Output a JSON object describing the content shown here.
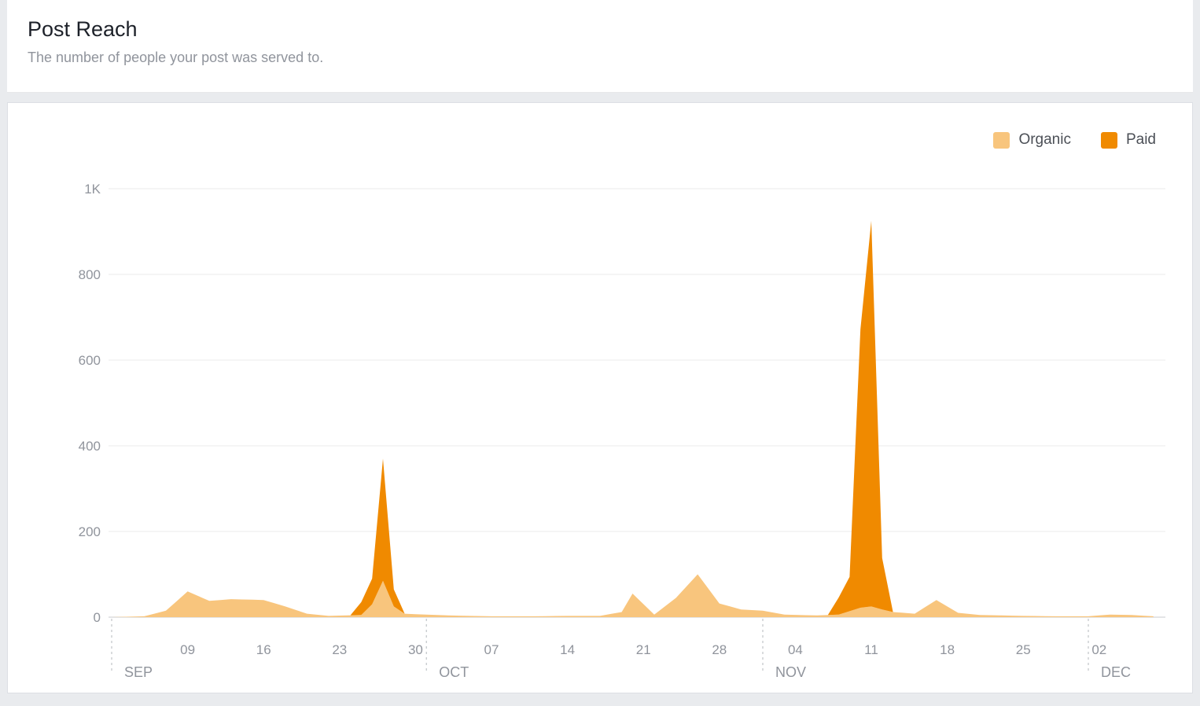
{
  "header": {
    "title": "Post Reach",
    "subtitle": "The number of people your post was served to."
  },
  "legend": [
    {
      "label": "Organic",
      "color": "#F8C57D"
    },
    {
      "label": "Paid",
      "color": "#F08A00"
    }
  ],
  "chart_data": {
    "type": "area",
    "stacked": true,
    "title": "Post Reach",
    "xlabel": "",
    "ylabel": "",
    "ylim": [
      0,
      1000
    ],
    "grid": true,
    "legend_position": "top-right",
    "x_unit": "days since Sep 02",
    "y_ticks": [
      {
        "value": 0,
        "label": "0"
      },
      {
        "value": 200,
        "label": "200"
      },
      {
        "value": 400,
        "label": "400"
      },
      {
        "value": 600,
        "label": "600"
      },
      {
        "value": 800,
        "label": "800"
      },
      {
        "value": 1000,
        "label": "1K"
      }
    ],
    "x_ticks": [
      {
        "day": 7,
        "label": "09"
      },
      {
        "day": 14,
        "label": "16"
      },
      {
        "day": 21,
        "label": "23"
      },
      {
        "day": 28,
        "label": "30"
      },
      {
        "day": 35,
        "label": "07"
      },
      {
        "day": 42,
        "label": "14"
      },
      {
        "day": 49,
        "label": "21"
      },
      {
        "day": 56,
        "label": "28"
      },
      {
        "day": 63,
        "label": "04"
      },
      {
        "day": 70,
        "label": "11"
      },
      {
        "day": 77,
        "label": "18"
      },
      {
        "day": 84,
        "label": "25"
      },
      {
        "day": 91,
        "label": "02"
      }
    ],
    "months": [
      {
        "day": 0,
        "label": "SEP"
      },
      {
        "day": 29,
        "label": "OCT"
      },
      {
        "day": 60,
        "label": "NOV"
      },
      {
        "day": 90,
        "label": "DEC"
      }
    ],
    "series": [
      {
        "name": "Organic",
        "color": "#F8C57D",
        "points": [
          [
            0,
            0
          ],
          [
            3,
            2
          ],
          [
            5,
            15
          ],
          [
            7,
            60
          ],
          [
            9,
            38
          ],
          [
            11,
            42
          ],
          [
            14,
            40
          ],
          [
            16,
            25
          ],
          [
            18,
            8
          ],
          [
            20,
            3
          ],
          [
            23,
            5
          ],
          [
            24,
            30
          ],
          [
            25,
            85
          ],
          [
            26,
            25
          ],
          [
            27,
            8
          ],
          [
            29,
            6
          ],
          [
            31,
            4
          ],
          [
            35,
            2
          ],
          [
            39,
            2
          ],
          [
            42,
            3
          ],
          [
            45,
            3
          ],
          [
            47,
            12
          ],
          [
            48,
            55
          ],
          [
            50,
            6
          ],
          [
            52,
            45
          ],
          [
            54,
            100
          ],
          [
            56,
            32
          ],
          [
            58,
            18
          ],
          [
            60,
            15
          ],
          [
            62,
            6
          ],
          [
            65,
            4
          ],
          [
            67,
            6
          ],
          [
            69,
            22
          ],
          [
            70,
            25
          ],
          [
            71,
            18
          ],
          [
            72,
            12
          ],
          [
            74,
            8
          ],
          [
            76,
            40
          ],
          [
            78,
            10
          ],
          [
            80,
            5
          ],
          [
            84,
            3
          ],
          [
            87,
            2
          ],
          [
            90,
            2
          ],
          [
            92,
            6
          ],
          [
            94,
            5
          ],
          [
            96,
            2
          ]
        ]
      },
      {
        "name": "Paid",
        "color": "#F08A00",
        "points": [
          [
            0,
            0
          ],
          [
            22,
            0
          ],
          [
            24,
            60
          ],
          [
            25,
            285
          ],
          [
            26,
            40
          ],
          [
            27,
            0
          ],
          [
            66,
            0
          ],
          [
            68,
            80
          ],
          [
            69,
            650
          ],
          [
            70,
            900
          ],
          [
            71,
            120
          ],
          [
            72,
            0
          ],
          [
            96,
            0
          ]
        ]
      }
    ]
  }
}
